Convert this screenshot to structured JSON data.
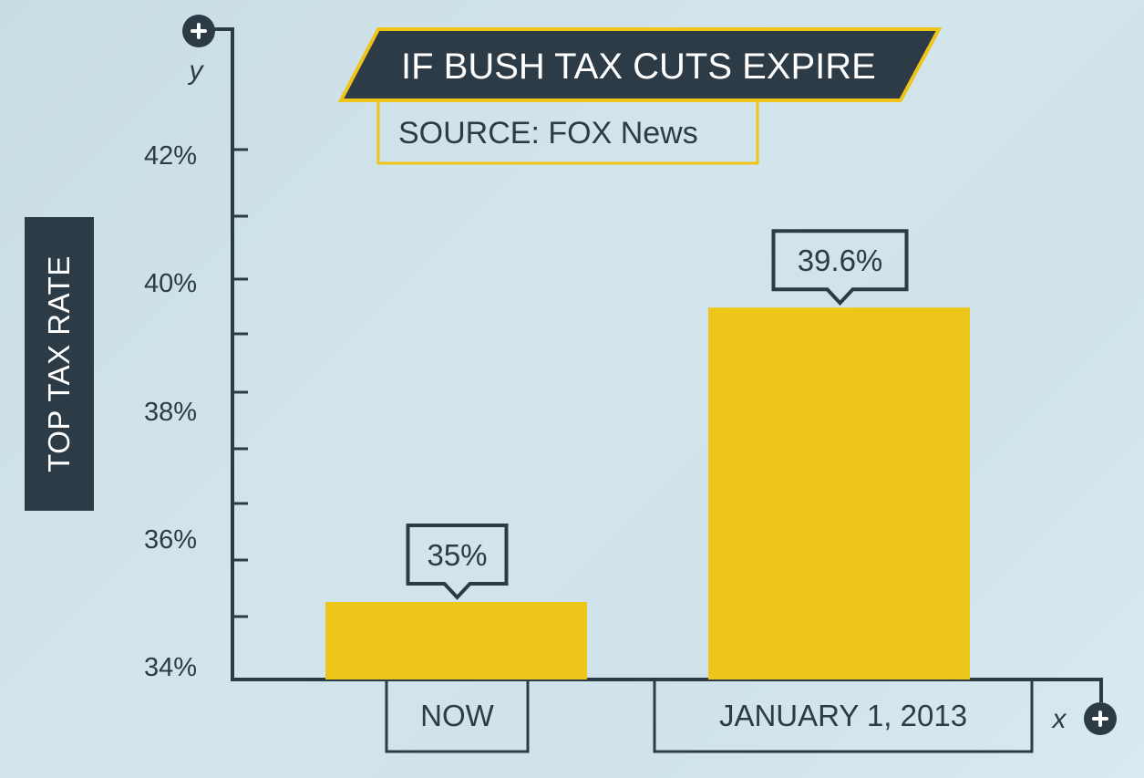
{
  "chart_data": {
    "type": "bar",
    "title": "IF BUSH TAX CUTS EXPIRE",
    "subtitle": "SOURCE: FOX News",
    "ylabel": "TOP TAX RATE",
    "y_axis_letter": "y",
    "x_axis_letter": "x",
    "categories": [
      "NOW",
      "JANUARY 1, 2013"
    ],
    "values": [
      35,
      39.6
    ],
    "value_labels": [
      "35%",
      "39.6%"
    ],
    "yticks": [
      "34%",
      "36%",
      "38%",
      "40%",
      "42%"
    ],
    "colors": {
      "bar": "#eec61a",
      "axis": "#2d3b47",
      "accent": "#f0c419",
      "title_bg": "#2d3b47",
      "text": "#2d3b47"
    }
  }
}
